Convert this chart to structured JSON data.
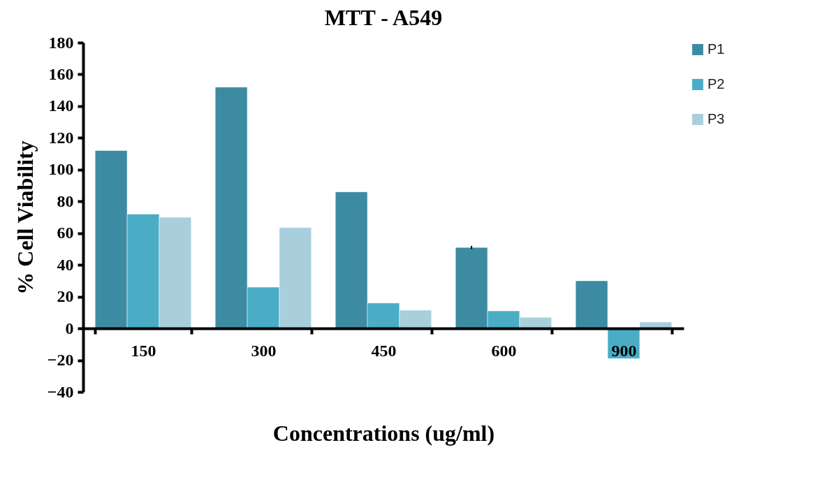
{
  "chart_data": {
    "type": "bar",
    "title": "MTT - A549",
    "xlabel": "Concentrations (ug/ml)",
    "ylabel": "% Cell Viability",
    "categories": [
      "150",
      "300",
      "450",
      "600",
      "900"
    ],
    "series": [
      {
        "name": "P1",
        "color": "#3d8ba3",
        "values": [
          112,
          152,
          86,
          51,
          30
        ],
        "errors": [
          null,
          null,
          null,
          1,
          null
        ]
      },
      {
        "name": "P2",
        "color": "#4aacc5",
        "values": [
          72,
          26,
          16,
          11,
          -19
        ]
      },
      {
        "name": "P3",
        "color": "#a9cfdc",
        "values": [
          70,
          63.5,
          11.5,
          7,
          4
        ]
      }
    ],
    "ylim": [
      -40,
      180
    ],
    "yticks": [
      -40,
      -20,
      0,
      20,
      40,
      60,
      80,
      100,
      120,
      140,
      160,
      180
    ],
    "grid": false,
    "legend": "right"
  }
}
